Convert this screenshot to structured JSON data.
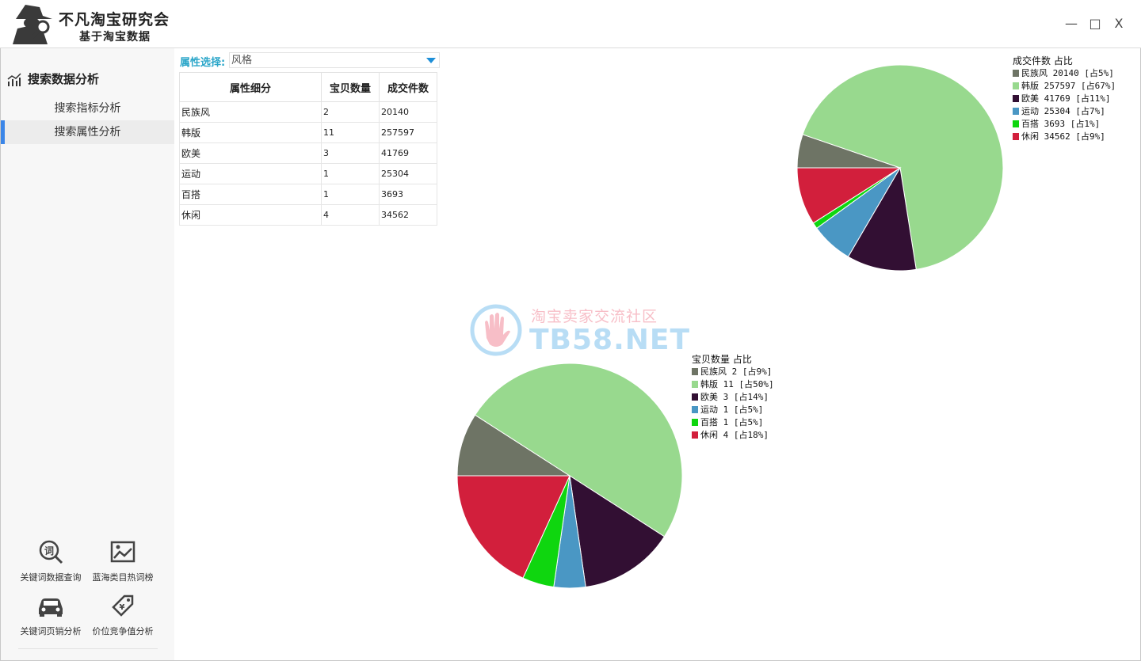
{
  "app": {
    "title": "不凡淘宝研究会",
    "subtitle": "基于淘宝数据",
    "window_controls": {
      "minimize": "—",
      "maximize": "□",
      "close": "X"
    }
  },
  "sidebar": {
    "header": "搜索数据分析",
    "items": [
      {
        "label": "搜索指标分析",
        "active": false
      },
      {
        "label": "搜索属性分析",
        "active": true
      }
    ],
    "tools": [
      {
        "label": "关键词数据查询",
        "icon": "keyword-search-icon"
      },
      {
        "label": "蓝海类目热词榜",
        "icon": "image-chart-icon"
      },
      {
        "label": "关键词页销分析",
        "icon": "car-icon"
      },
      {
        "label": "价位竞争值分析",
        "icon": "price-tag-icon"
      }
    ]
  },
  "filter": {
    "label": "属性选择:",
    "value": "风格"
  },
  "table": {
    "headers": [
      "属性细分",
      "宝贝数量",
      "成交件数"
    ],
    "rows": [
      [
        "民族风",
        "2",
        "20140"
      ],
      [
        "韩版",
        "11",
        "257597"
      ],
      [
        "欧美",
        "3",
        "41769"
      ],
      [
        "运动",
        "1",
        "25304"
      ],
      [
        "百搭",
        "1",
        "3693"
      ],
      [
        "休闲",
        "4",
        "34562"
      ]
    ]
  },
  "watermark": {
    "line1": "淘宝卖家交流社区",
    "line2": "TB58.NET"
  },
  "colors": {
    "accent": "#3b86e8",
    "label": "#2ba6c9",
    "slices": [
      "#6e7465",
      "#98d98e",
      "#320f33",
      "#4a97c4",
      "#0fd60f",
      "#d21f3c"
    ]
  },
  "chart_data": [
    {
      "type": "pie",
      "title": "成交件数 占比",
      "categories": [
        "民族风",
        "韩版",
        "欧美",
        "运动",
        "百搭",
        "休闲"
      ],
      "values": [
        20140,
        257597,
        41769,
        25304,
        3693,
        34562
      ],
      "legend": [
        "民族风 20140 [占5%]",
        "韩版 257597 [占67%]",
        "欧美 41769 [占11%]",
        "运动 25304 [占7%]",
        "百搭 3693 [占1%]",
        "休闲 34562 [占9%]"
      ],
      "legend_position": "top-right"
    },
    {
      "type": "pie",
      "title": "宝贝数量 占比",
      "categories": [
        "民族风",
        "韩版",
        "欧美",
        "运动",
        "百搭",
        "休闲"
      ],
      "values": [
        2,
        11,
        3,
        1,
        1,
        4
      ],
      "legend": [
        "民族风 2 [占9%]",
        "韩版 11 [占50%]",
        "欧美 3 [占14%]",
        "运动 1 [占5%]",
        "百搭 1 [占5%]",
        "休闲 4 [占18%]"
      ],
      "legend_position": "top-right"
    }
  ]
}
